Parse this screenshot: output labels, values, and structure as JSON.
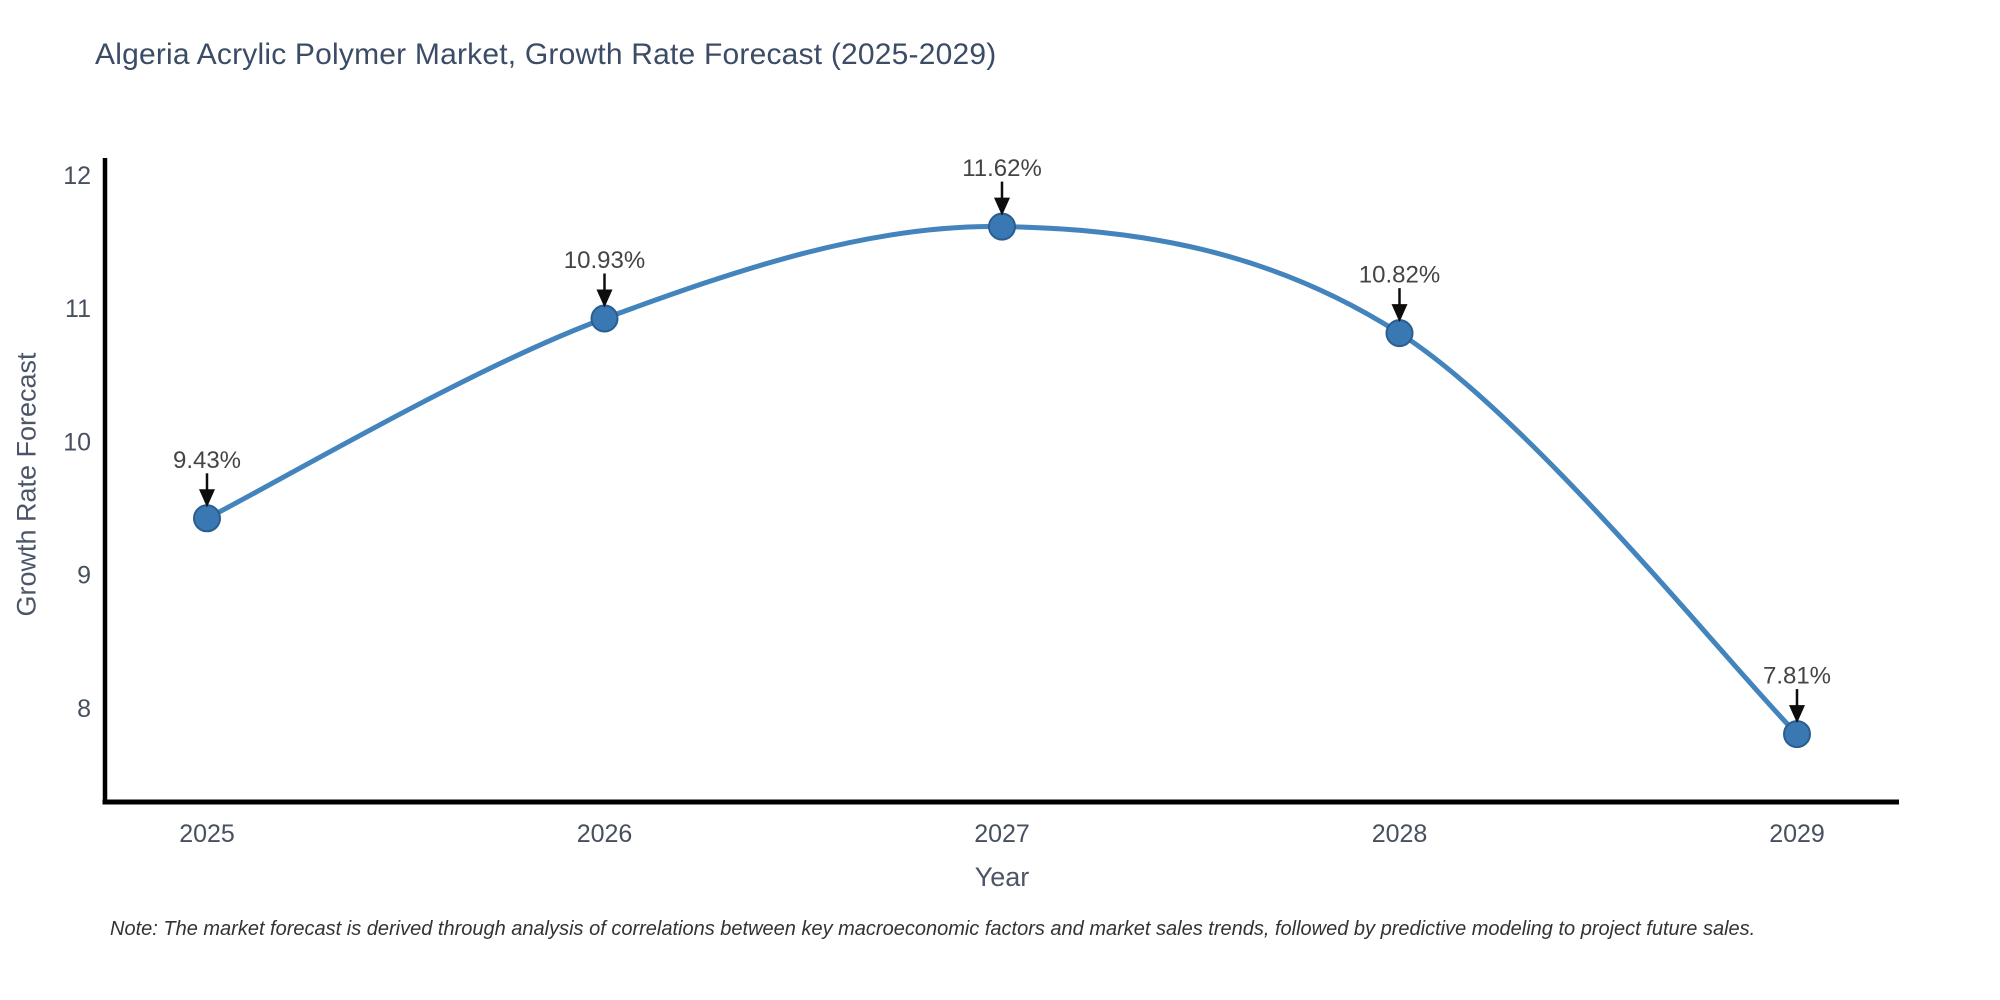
{
  "title": "Algeria Acrylic Polymer Market, Growth Rate Forecast (2025-2029)",
  "note": "Note: The market forecast is derived through analysis of correlations between key macroeconomic factors and market sales trends, followed by predictive modeling to project future sales.",
  "chart_data": {
    "type": "line",
    "title": "Algeria Acrylic Polymer Market, Growth Rate Forecast (2025-2029)",
    "xlabel": "Year",
    "ylabel": "Growth Rate Forecast",
    "categories": [
      "2025",
      "2026",
      "2027",
      "2028",
      "2029"
    ],
    "values": [
      9.43,
      10.93,
      11.62,
      10.82,
      7.81
    ],
    "point_labels": [
      "9.43%",
      "10.93%",
      "11.62%",
      "10.82%",
      "7.81%"
    ],
    "yticks": [
      8,
      9,
      10,
      11,
      12
    ],
    "ylim": [
      7.3,
      12.12
    ],
    "line_shape": "spline",
    "grid": false,
    "legend_position": "none",
    "colors": {
      "line": "#4484bd",
      "marker_fill": "#3a78b3",
      "marker_edge": "#2b5e90",
      "arrow": "#0d0d0d",
      "annotation_text": "#444444",
      "axis_spine": "#000000",
      "tick_label": "#47505e",
      "title_text": "#3c4c66"
    }
  }
}
